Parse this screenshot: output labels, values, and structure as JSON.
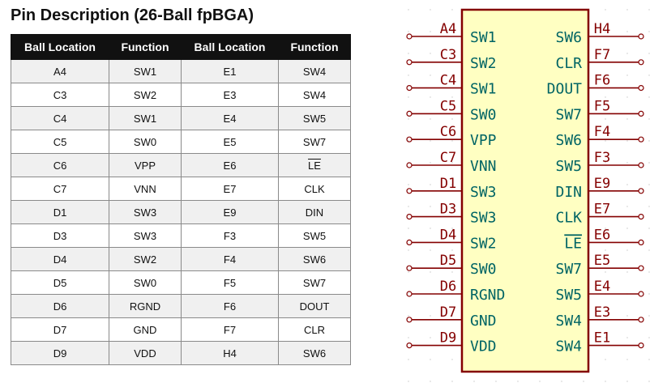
{
  "title": "Pin Description (26-Ball fpBGA)",
  "table": {
    "headers": [
      "Ball Location",
      "Function",
      "Ball Location",
      "Function"
    ],
    "rows": [
      [
        "A4",
        "SW1",
        "E1",
        "SW4"
      ],
      [
        "C3",
        "SW2",
        "E3",
        "SW4"
      ],
      [
        "C4",
        "SW1",
        "E4",
        "SW5"
      ],
      [
        "C5",
        "SW0",
        "E5",
        "SW7"
      ],
      [
        "C6",
        "VPP",
        "E6",
        "LE"
      ],
      [
        "C7",
        "VNN",
        "E7",
        "CLK"
      ],
      [
        "D1",
        "SW3",
        "E9",
        "DIN"
      ],
      [
        "D3",
        "SW3",
        "F3",
        "SW5"
      ],
      [
        "D4",
        "SW2",
        "F4",
        "SW6"
      ],
      [
        "D5",
        "SW0",
        "F5",
        "SW7"
      ],
      [
        "D6",
        "RGND",
        "F6",
        "DOUT"
      ],
      [
        "D7",
        "GND",
        "F7",
        "CLR"
      ],
      [
        "D9",
        "VDD",
        "H4",
        "SW6"
      ]
    ]
  },
  "schematic": {
    "colors": {
      "body_stroke": "#840000",
      "body_fill": "#ffffc2",
      "pin": "#840000",
      "label": "#006464"
    },
    "left_pins": [
      {
        "ball": "A4",
        "name": "SW1"
      },
      {
        "ball": "C3",
        "name": "SW2"
      },
      {
        "ball": "C4",
        "name": "SW1"
      },
      {
        "ball": "C5",
        "name": "SW0"
      },
      {
        "ball": "C6",
        "name": "VPP"
      },
      {
        "ball": "C7",
        "name": "VNN"
      },
      {
        "ball": "D1",
        "name": "SW3"
      },
      {
        "ball": "D3",
        "name": "SW3"
      },
      {
        "ball": "D4",
        "name": "SW2"
      },
      {
        "ball": "D5",
        "name": "SW0"
      },
      {
        "ball": "D6",
        "name": "RGND"
      },
      {
        "ball": "D7",
        "name": "GND"
      },
      {
        "ball": "D9",
        "name": "VDD"
      }
    ],
    "right_pins": [
      {
        "ball": "H4",
        "name": "SW6"
      },
      {
        "ball": "F7",
        "name": "CLR"
      },
      {
        "ball": "F6",
        "name": "DOUT"
      },
      {
        "ball": "F5",
        "name": "SW7"
      },
      {
        "ball": "F4",
        "name": "SW6"
      },
      {
        "ball": "F3",
        "name": "SW5"
      },
      {
        "ball": "E9",
        "name": "DIN"
      },
      {
        "ball": "E7",
        "name": "CLK"
      },
      {
        "ball": "E6",
        "name": "LE"
      },
      {
        "ball": "E5",
        "name": "SW7"
      },
      {
        "ball": "E4",
        "name": "SW5"
      },
      {
        "ball": "E3",
        "name": "SW4"
      },
      {
        "ball": "E1",
        "name": "SW4"
      }
    ]
  }
}
